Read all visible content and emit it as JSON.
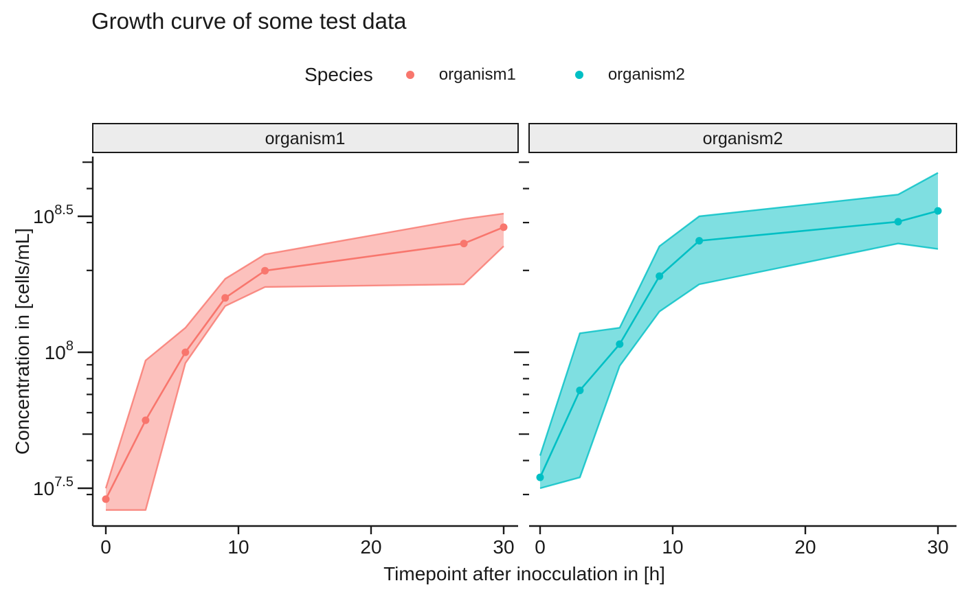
{
  "title": "Growth curve of some test data",
  "legend": {
    "title": "Species",
    "items": [
      {
        "label": "organism1",
        "color": "#F8766D"
      },
      {
        "label": "organism2",
        "color": "#00BFC4"
      }
    ]
  },
  "facets": [
    {
      "label": "organism1"
    },
    {
      "label": "organism2"
    }
  ],
  "axes": {
    "x_title": "Timepoint after inocculation in [h]",
    "y_title": "Concentration in [cells/mL]",
    "x_ticks": [
      0,
      10,
      20,
      30
    ],
    "y_tick_labels": [
      {
        "base": "10",
        "exp": "7.5",
        "log10": 7.5
      },
      {
        "base": "10",
        "exp": "8",
        "log10": 8.0
      },
      {
        "base": "10",
        "exp": "8.5",
        "log10": 8.5
      }
    ]
  },
  "chart_data": {
    "type": "line",
    "title": "Growth curve of some test data",
    "xlabel": "Timepoint after inocculation in [h]",
    "ylabel": "Concentration in [cells/mL]",
    "y_scale": "log10",
    "x_domain": [
      0,
      30
    ],
    "y_domain_log10": [
      7.36,
      8.72
    ],
    "x_breaks": [
      0,
      10,
      20,
      30
    ],
    "y_breaks_log10": [
      7.5,
      8.0,
      8.5
    ],
    "y_logtick_long_log10": [
      8.0
    ],
    "y_logtick_mid_log10": [
      7.699,
      8.699
    ],
    "y_logtick_short_log10": [
      7.477,
      7.602,
      7.778,
      7.845,
      7.903,
      7.954,
      8.301,
      8.477,
      8.602
    ],
    "legend_position": "top",
    "x": [
      0,
      3,
      6,
      9,
      12,
      27,
      30
    ],
    "series": [
      {
        "name": "organism1",
        "facet": "organism1",
        "color": "#F8766D",
        "ribbon_opacity": 0.45,
        "y_log10": [
          7.46,
          7.75,
          8.0,
          8.2,
          8.3,
          8.4,
          8.46
        ],
        "band_low_log10": [
          7.42,
          7.42,
          7.96,
          8.17,
          8.24,
          8.25,
          8.39
        ],
        "band_high_log10": [
          7.5,
          7.97,
          8.09,
          8.27,
          8.36,
          8.49,
          8.51
        ]
      },
      {
        "name": "organism2",
        "facet": "organism2",
        "color": "#00BFC4",
        "ribbon_opacity": 0.5,
        "y_log10": [
          7.54,
          7.86,
          8.03,
          8.28,
          8.41,
          8.48,
          8.52
        ],
        "band_low_log10": [
          7.5,
          7.54,
          7.95,
          8.15,
          8.25,
          8.4,
          8.38
        ],
        "band_high_log10": [
          7.62,
          8.07,
          8.09,
          8.39,
          8.5,
          8.58,
          8.66
        ]
      }
    ]
  },
  "colors": {
    "organism1": "#F8766D",
    "organism2": "#00BFC4",
    "strip_fill": "#ECECEC",
    "strip_border": "#1a1a1a",
    "axis": "#1a1a1a",
    "text": "#1a1a1a"
  }
}
